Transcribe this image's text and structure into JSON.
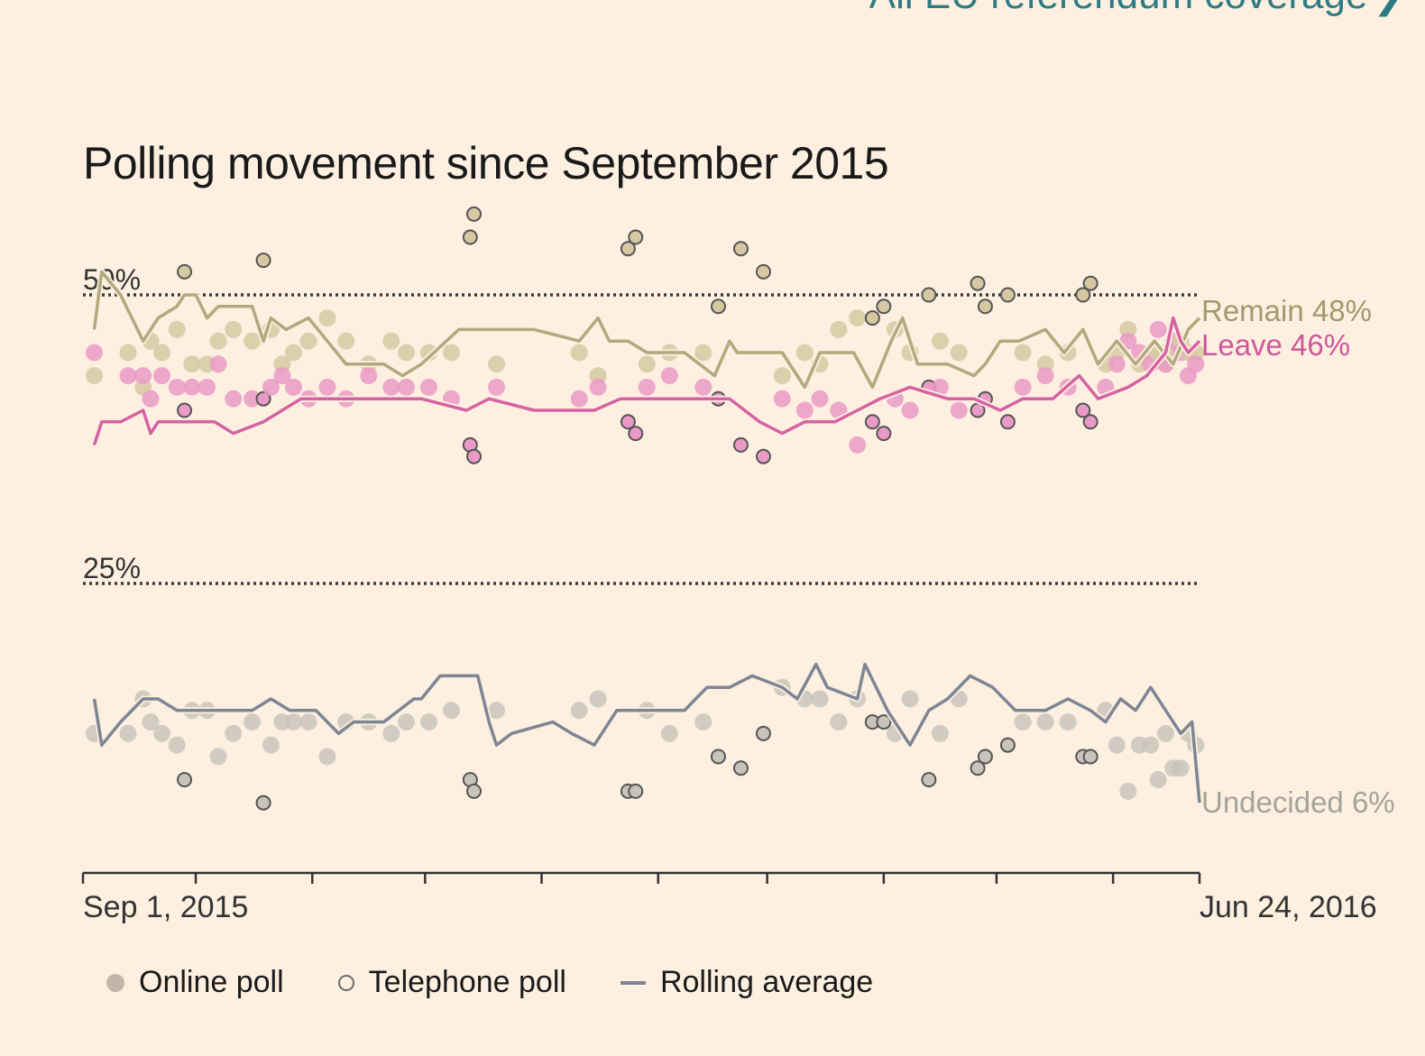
{
  "header": {
    "link_text": "All EU referendum coverage",
    "link_icon": "chevron-right-icon",
    "link_color": "#2e7c83"
  },
  "chart_data": {
    "type": "scatter",
    "title": "Polling movement since September 2015",
    "x_start_label": "Sep 1, 2015",
    "x_end_label": "Jun 24, 2016",
    "xlim": [
      0,
      297
    ],
    "ylim": [
      0,
      58
    ],
    "gridlines": [
      {
        "value": 50,
        "label": "50%"
      },
      {
        "value": 25,
        "label": "25%"
      }
    ],
    "x_ticks": [
      0,
      30,
      61,
      91,
      122,
      153,
      182,
      213,
      243,
      274,
      297
    ],
    "colors": {
      "remain": "#b0aa7e",
      "leave": "#d563a2",
      "undecided": "#7e8593",
      "grid": "#3a3a3a",
      "axis": "#333333"
    },
    "end_labels": {
      "remain": "Remain 48%",
      "leave": "Leave 46%",
      "undecided": "Undecided 6%"
    },
    "legend": [
      {
        "label": "Online poll",
        "icon": "filled-dot-icon"
      },
      {
        "label": "Telephone poll",
        "icon": "hollow-dot-icon"
      },
      {
        "label": "Rolling average",
        "icon": "line-icon"
      }
    ],
    "series": [
      {
        "name": "Remain",
        "key": "remain",
        "rolling_average": [
          [
            3,
            47
          ],
          [
            5,
            52
          ],
          [
            10,
            50
          ],
          [
            16,
            46
          ],
          [
            20,
            48
          ],
          [
            25,
            49
          ],
          [
            27,
            50
          ],
          [
            30,
            50
          ],
          [
            33,
            48
          ],
          [
            36,
            49
          ],
          [
            45,
            49
          ],
          [
            48,
            46
          ],
          [
            50,
            48
          ],
          [
            54,
            47
          ],
          [
            60,
            48
          ],
          [
            65,
            46
          ],
          [
            70,
            44
          ],
          [
            80,
            44
          ],
          [
            85,
            43
          ],
          [
            90,
            44
          ],
          [
            100,
            47
          ],
          [
            110,
            47
          ],
          [
            120,
            47
          ],
          [
            132,
            46
          ],
          [
            137,
            48
          ],
          [
            140,
            46
          ],
          [
            145,
            46
          ],
          [
            150,
            45
          ],
          [
            160,
            45
          ],
          [
            168,
            43
          ],
          [
            172,
            46
          ],
          [
            174,
            45
          ],
          [
            179,
            45
          ],
          [
            186,
            45
          ],
          [
            192,
            42
          ],
          [
            196,
            45
          ],
          [
            205,
            45
          ],
          [
            210,
            42
          ],
          [
            215,
            46
          ],
          [
            218,
            48
          ],
          [
            222,
            44
          ],
          [
            230,
            44
          ],
          [
            237,
            43
          ],
          [
            240,
            44
          ],
          [
            244,
            46
          ],
          [
            249,
            46
          ],
          [
            256,
            47
          ],
          [
            261,
            45
          ],
          [
            266,
            47
          ],
          [
            270,
            44
          ],
          [
            275,
            46
          ],
          [
            280,
            44
          ],
          [
            285,
            46
          ],
          [
            290,
            44
          ],
          [
            294,
            47
          ],
          [
            297,
            48
          ]
        ]
      },
      {
        "name": "Leave",
        "key": "leave",
        "rolling_average": [
          [
            3,
            37
          ],
          [
            5,
            39
          ],
          [
            10,
            39
          ],
          [
            16,
            40
          ],
          [
            18,
            38
          ],
          [
            20,
            39
          ],
          [
            30,
            39
          ],
          [
            35,
            39
          ],
          [
            40,
            38
          ],
          [
            48,
            39
          ],
          [
            53,
            40
          ],
          [
            58,
            41
          ],
          [
            65,
            41
          ],
          [
            70,
            41
          ],
          [
            80,
            41
          ],
          [
            90,
            41
          ],
          [
            102,
            40
          ],
          [
            108,
            41
          ],
          [
            120,
            40
          ],
          [
            136,
            40
          ],
          [
            143,
            41
          ],
          [
            150,
            41
          ],
          [
            160,
            41
          ],
          [
            172,
            41
          ],
          [
            180,
            39
          ],
          [
            186,
            38
          ],
          [
            192,
            39
          ],
          [
            200,
            39
          ],
          [
            206,
            40
          ],
          [
            212,
            41
          ],
          [
            220,
            42
          ],
          [
            230,
            41
          ],
          [
            237,
            41
          ],
          [
            244,
            40
          ],
          [
            250,
            41
          ],
          [
            258,
            41
          ],
          [
            265,
            43
          ],
          [
            270,
            41
          ],
          [
            278,
            42
          ],
          [
            283,
            43
          ],
          [
            288,
            45
          ],
          [
            290,
            48
          ],
          [
            292,
            46
          ],
          [
            294,
            45
          ],
          [
            297,
            46
          ]
        ]
      },
      {
        "name": "Undecided",
        "key": "undecided",
        "rolling_average": [
          [
            3,
            15
          ],
          [
            5,
            11
          ],
          [
            10,
            13
          ],
          [
            16,
            15
          ],
          [
            20,
            15
          ],
          [
            25,
            14
          ],
          [
            30,
            14
          ],
          [
            35,
            14
          ],
          [
            40,
            14
          ],
          [
            45,
            14
          ],
          [
            50,
            15
          ],
          [
            55,
            14
          ],
          [
            62,
            14
          ],
          [
            68,
            12
          ],
          [
            72,
            13
          ],
          [
            80,
            13
          ],
          [
            88,
            15
          ],
          [
            90,
            15
          ],
          [
            95,
            17
          ],
          [
            100,
            17
          ],
          [
            105,
            17
          ],
          [
            108,
            13
          ],
          [
            110,
            11
          ],
          [
            114,
            12
          ],
          [
            125,
            13
          ],
          [
            130,
            12
          ],
          [
            136,
            11
          ],
          [
            142,
            14
          ],
          [
            150,
            14
          ],
          [
            160,
            14
          ],
          [
            166,
            16
          ],
          [
            172,
            16
          ],
          [
            178,
            17
          ],
          [
            186,
            16
          ],
          [
            190,
            15
          ],
          [
            195,
            18
          ],
          [
            198,
            16
          ],
          [
            206,
            15
          ],
          [
            208,
            18
          ],
          [
            214,
            14
          ],
          [
            220,
            11
          ],
          [
            225,
            14
          ],
          [
            230,
            15
          ],
          [
            236,
            17
          ],
          [
            242,
            16
          ],
          [
            248,
            14
          ],
          [
            256,
            14
          ],
          [
            262,
            15
          ],
          [
            268,
            14
          ],
          [
            272,
            13
          ],
          [
            276,
            15
          ],
          [
            280,
            14
          ],
          [
            284,
            16
          ],
          [
            288,
            14
          ],
          [
            292,
            12
          ],
          [
            295,
            13
          ],
          [
            297,
            6
          ]
        ]
      }
    ],
    "polls": [
      {
        "day": 3,
        "remain": 43,
        "leave": 45,
        "undecided": 12,
        "mode": "online"
      },
      {
        "day": 12,
        "remain": 45,
        "leave": 43,
        "undecided": 12,
        "mode": "online"
      },
      {
        "day": 16,
        "remain": 42,
        "leave": 43,
        "undecided": 15,
        "mode": "online"
      },
      {
        "day": 18,
        "remain": 46,
        "leave": 41,
        "undecided": 13,
        "mode": "online"
      },
      {
        "day": 21,
        "remain": 45,
        "leave": 43,
        "undecided": 12,
        "mode": "online"
      },
      {
        "day": 25,
        "remain": 47,
        "leave": 42,
        "undecided": 11,
        "mode": "online"
      },
      {
        "day": 27,
        "remain": 52,
        "leave": 40,
        "undecided": 8,
        "mode": "phone"
      },
      {
        "day": 29,
        "remain": 44,
        "leave": 42,
        "undecided": 14,
        "mode": "online"
      },
      {
        "day": 33,
        "remain": 44,
        "leave": 42,
        "undecided": 14,
        "mode": "online"
      },
      {
        "day": 36,
        "remain": 46,
        "leave": 44,
        "undecided": 10,
        "mode": "online"
      },
      {
        "day": 40,
        "remain": 47,
        "leave": 41,
        "undecided": 12,
        "mode": "online"
      },
      {
        "day": 45,
        "remain": 46,
        "leave": 41,
        "undecided": 13,
        "mode": "online"
      },
      {
        "day": 48,
        "remain": 53,
        "leave": 41,
        "undecided": 6,
        "mode": "phone"
      },
      {
        "day": 50,
        "remain": 47,
        "leave": 42,
        "undecided": 11,
        "mode": "online"
      },
      {
        "day": 53,
        "remain": 44,
        "leave": 43,
        "undecided": 13,
        "mode": "online"
      },
      {
        "day": 56,
        "remain": 45,
        "leave": 42,
        "undecided": 13,
        "mode": "online"
      },
      {
        "day": 60,
        "remain": 46,
        "leave": 41,
        "undecided": 13,
        "mode": "online"
      },
      {
        "day": 65,
        "remain": 48,
        "leave": 42,
        "undecided": 10,
        "mode": "online"
      },
      {
        "day": 70,
        "remain": 46,
        "leave": 41,
        "undecided": 13,
        "mode": "online"
      },
      {
        "day": 76,
        "remain": 44,
        "leave": 43,
        "undecided": 13,
        "mode": "online"
      },
      {
        "day": 82,
        "remain": 46,
        "leave": 42,
        "undecided": 12,
        "mode": "online"
      },
      {
        "day": 86,
        "remain": 45,
        "leave": 42,
        "undecided": 13,
        "mode": "online"
      },
      {
        "day": 92,
        "remain": 45,
        "leave": 42,
        "undecided": 13,
        "mode": "online"
      },
      {
        "day": 98,
        "remain": 45,
        "leave": 41,
        "undecided": 14,
        "mode": "online"
      },
      {
        "day": 103,
        "remain": 55,
        "leave": 37,
        "undecided": 8,
        "mode": "phone"
      },
      {
        "day": 104,
        "remain": 57,
        "leave": 36,
        "undecided": 7,
        "mode": "phone"
      },
      {
        "day": 110,
        "remain": 44,
        "leave": 42,
        "undecided": 14,
        "mode": "online"
      },
      {
        "day": 132,
        "remain": 45,
        "leave": 41,
        "undecided": 14,
        "mode": "online"
      },
      {
        "day": 137,
        "remain": 43,
        "leave": 42,
        "undecided": 15,
        "mode": "online"
      },
      {
        "day": 145,
        "remain": 54,
        "leave": 39,
        "undecided": 7,
        "mode": "phone"
      },
      {
        "day": 147,
        "remain": 55,
        "leave": 38,
        "undecided": 7,
        "mode": "phone"
      },
      {
        "day": 150,
        "remain": 44,
        "leave": 42,
        "undecided": 14,
        "mode": "online"
      },
      {
        "day": 156,
        "remain": 45,
        "leave": 43,
        "undecided": 12,
        "mode": "online"
      },
      {
        "day": 165,
        "remain": 45,
        "leave": 42,
        "undecided": 13,
        "mode": "online"
      },
      {
        "day": 169,
        "remain": 49,
        "leave": 41,
        "undecided": 10,
        "mode": "phone"
      },
      {
        "day": 175,
        "remain": 54,
        "leave": 37,
        "undecided": 9,
        "mode": "phone"
      },
      {
        "day": 181,
        "remain": 52,
        "leave": 36,
        "undecided": 12,
        "mode": "phone"
      },
      {
        "day": 186,
        "remain": 43,
        "leave": 41,
        "undecided": 16,
        "mode": "online"
      },
      {
        "day": 192,
        "remain": 45,
        "leave": 40,
        "undecided": 15,
        "mode": "online"
      },
      {
        "day": 196,
        "remain": 44,
        "leave": 41,
        "undecided": 15,
        "mode": "online"
      },
      {
        "day": 201,
        "remain": 47,
        "leave": 40,
        "undecided": 13,
        "mode": "online"
      },
      {
        "day": 206,
        "remain": 48,
        "leave": 37,
        "undecided": 15,
        "mode": "online"
      },
      {
        "day": 210,
        "remain": 48,
        "leave": 39,
        "undecided": 13,
        "mode": "phone"
      },
      {
        "day": 213,
        "remain": 49,
        "leave": 38,
        "undecided": 13,
        "mode": "phone"
      },
      {
        "day": 216,
        "remain": 47,
        "leave": 41,
        "undecided": 12,
        "mode": "online"
      },
      {
        "day": 220,
        "remain": 45,
        "leave": 40,
        "undecided": 15,
        "mode": "online"
      },
      {
        "day": 225,
        "remain": 50,
        "leave": 42,
        "undecided": 8,
        "mode": "phone"
      },
      {
        "day": 228,
        "remain": 46,
        "leave": 42,
        "undecided": 12,
        "mode": "online"
      },
      {
        "day": 233,
        "remain": 45,
        "leave": 40,
        "undecided": 15,
        "mode": "online"
      },
      {
        "day": 238,
        "remain": 51,
        "leave": 40,
        "undecided": 9,
        "mode": "phone"
      },
      {
        "day": 240,
        "remain": 49,
        "leave": 41,
        "undecided": 10,
        "mode": "phone"
      },
      {
        "day": 246,
        "remain": 50,
        "leave": 39,
        "undecided": 11,
        "mode": "phone"
      },
      {
        "day": 250,
        "remain": 45,
        "leave": 42,
        "undecided": 13,
        "mode": "online"
      },
      {
        "day": 256,
        "remain": 44,
        "leave": 43,
        "undecided": 13,
        "mode": "online"
      },
      {
        "day": 262,
        "remain": 45,
        "leave": 42,
        "undecided": 13,
        "mode": "online"
      },
      {
        "day": 266,
        "remain": 50,
        "leave": 40,
        "undecided": 10,
        "mode": "phone"
      },
      {
        "day": 268,
        "remain": 51,
        "leave": 39,
        "undecided": 10,
        "mode": "phone"
      },
      {
        "day": 272,
        "remain": 44,
        "leave": 42,
        "undecided": 14,
        "mode": "online"
      },
      {
        "day": 275,
        "remain": 45,
        "leave": 44,
        "undecided": 11,
        "mode": "online"
      },
      {
        "day": 278,
        "remain": 47,
        "leave": 46,
        "undecided": 7,
        "mode": "online"
      },
      {
        "day": 281,
        "remain": 44,
        "leave": 45,
        "undecided": 11,
        "mode": "online"
      },
      {
        "day": 284,
        "remain": 45,
        "leave": 44,
        "undecided": 11,
        "mode": "online"
      },
      {
        "day": 286,
        "remain": 45,
        "leave": 47,
        "undecided": 8,
        "mode": "online"
      },
      {
        "day": 288,
        "remain": 44,
        "leave": 44,
        "undecided": 12,
        "mode": "online"
      },
      {
        "day": 290,
        "remain": 45,
        "leave": 46,
        "undecided": 9,
        "mode": "online"
      },
      {
        "day": 292,
        "remain": 46,
        "leave": 45,
        "undecided": 9,
        "mode": "online"
      },
      {
        "day": 294,
        "remain": 45,
        "leave": 43,
        "undecided": 12,
        "mode": "online"
      },
      {
        "day": 296,
        "remain": 45,
        "leave": 44,
        "undecided": 11,
        "mode": "online"
      }
    ]
  }
}
